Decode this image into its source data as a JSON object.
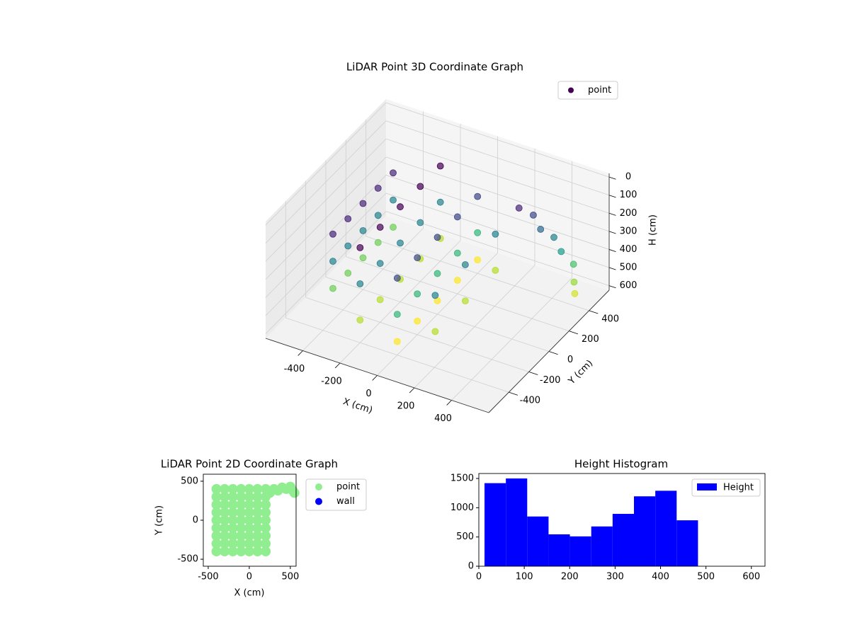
{
  "chart_data": [
    {
      "type": "scatter3d",
      "title": "LiDAR Point 3D Coordinate Graph",
      "xlabel": "X (cm)",
      "ylabel": "Y (cm)",
      "zlabel": "H (cm)",
      "colormap": "viridis",
      "legend": "upper right",
      "grid": true,
      "series": [
        {
          "name": "point",
          "x": [
            -400,
            -400,
            -400,
            -400,
            -400,
            -400,
            -400,
            -400,
            -400,
            -400,
            -400,
            -400,
            -400,
            -400,
            -400,
            -200,
            -200,
            -200,
            -200,
            -200,
            -200,
            -200,
            -200,
            -200,
            -200,
            -200,
            -200,
            -200,
            -200,
            -200,
            0,
            0,
            0,
            0,
            0,
            0,
            0,
            0,
            0,
            0,
            0,
            0,
            0,
            0,
            0,
            150,
            150,
            150,
            150,
            150,
            150,
            250,
            300,
            350,
            400,
            450,
            500,
            530,
            550
          ],
          "y": [
            -300,
            -300,
            -300,
            -150,
            -150,
            -150,
            0,
            0,
            0,
            150,
            150,
            150,
            300,
            300,
            300,
            -400,
            -400,
            -400,
            -200,
            -200,
            -200,
            0,
            0,
            0,
            200,
            200,
            200,
            400,
            400,
            400,
            -400,
            -400,
            -400,
            -200,
            -200,
            -200,
            0,
            0,
            0,
            200,
            200,
            200,
            400,
            400,
            400,
            -300,
            -300,
            0,
            0,
            300,
            300,
            350,
            400,
            380,
            420,
            400,
            430,
            380,
            350
          ],
          "z": [
            150,
            300,
            450,
            150,
            300,
            450,
            150,
            300,
            450,
            150,
            300,
            450,
            150,
            300,
            450,
            100,
            300,
            500,
            100,
            300,
            500,
            100,
            300,
            500,
            100,
            300,
            500,
            100,
            300,
            500,
            200,
            400,
            550,
            200,
            400,
            550,
            200,
            400,
            550,
            200,
            400,
            550,
            200,
            400,
            550,
            300,
            500,
            300,
            500,
            300,
            500,
            150,
            200,
            250,
            300,
            350,
            420,
            480,
            520
          ]
        }
      ],
      "xlim": [
        -600,
        600
      ],
      "ylim": [
        -600,
        600
      ],
      "zlim": [
        625,
        -20
      ],
      "xticks": [
        -400,
        -200,
        0,
        200,
        400
      ],
      "yticks": [
        -400,
        -200,
        0,
        200,
        400
      ],
      "zticks": [
        0,
        100,
        200,
        300,
        400,
        500,
        600
      ]
    },
    {
      "type": "scatter",
      "title": "LiDAR Point 2D Coordinate Graph",
      "xlabel": "X (cm)",
      "ylabel": "Y (cm)",
      "legend": "right",
      "series": [
        {
          "name": "point",
          "color": "#90ee90",
          "x": [
            -400,
            -400,
            -400,
            -400,
            -400,
            -400,
            -400,
            -400,
            -400,
            -300,
            -300,
            -300,
            -300,
            -300,
            -300,
            -300,
            -300,
            -300,
            -200,
            -200,
            -200,
            -200,
            -200,
            -200,
            -200,
            -200,
            -200,
            -100,
            -100,
            -100,
            -100,
            -100,
            -100,
            -100,
            -100,
            -100,
            0,
            0,
            0,
            0,
            0,
            0,
            0,
            0,
            0,
            100,
            100,
            100,
            100,
            100,
            100,
            100,
            100,
            100,
            200,
            200,
            200,
            200,
            200,
            200,
            200,
            200,
            200,
            250,
            300,
            350,
            400,
            450,
            500,
            530,
            550
          ],
          "y": [
            -400,
            -300,
            -200,
            -100,
            0,
            100,
            200,
            300,
            400,
            -400,
            -300,
            -200,
            -100,
            0,
            100,
            200,
            300,
            400,
            -400,
            -300,
            -200,
            -100,
            0,
            100,
            200,
            300,
            400,
            -400,
            -300,
            -200,
            -100,
            0,
            100,
            200,
            300,
            400,
            -400,
            -300,
            -200,
            -100,
            0,
            100,
            200,
            300,
            400,
            -400,
            -300,
            -200,
            -100,
            0,
            100,
            200,
            300,
            400,
            -400,
            -300,
            -200,
            -100,
            0,
            100,
            200,
            300,
            400,
            350,
            400,
            380,
            420,
            400,
            430,
            380,
            350
          ]
        },
        {
          "name": "wall",
          "color": "#0000ff",
          "x": [],
          "y": []
        }
      ],
      "xlim": [
        -560,
        570
      ],
      "ylim": [
        -590,
        590
      ],
      "xticks": [
        -500,
        0,
        500
      ],
      "yticks": [
        -500,
        0,
        500
      ]
    },
    {
      "type": "histogram",
      "title": "Height Histogram",
      "legend": "upper right",
      "bins": [
        12.5,
        59.5,
        106.5,
        153.5,
        200.5,
        247.5,
        294.5,
        341.5,
        388.5,
        435.5,
        482.5
      ],
      "series": [
        {
          "name": "Height",
          "color": "#0000ff",
          "values": [
            1420,
            1500,
            850,
            545,
            510,
            680,
            895,
            1195,
            1290,
            785
          ]
        }
      ],
      "xlim": [
        0,
        630
      ],
      "ylim": [
        0,
        1585
      ],
      "xticks": [
        0,
        100,
        200,
        300,
        400,
        500,
        600
      ],
      "yticks": [
        0,
        500,
        1000,
        1500
      ]
    }
  ]
}
